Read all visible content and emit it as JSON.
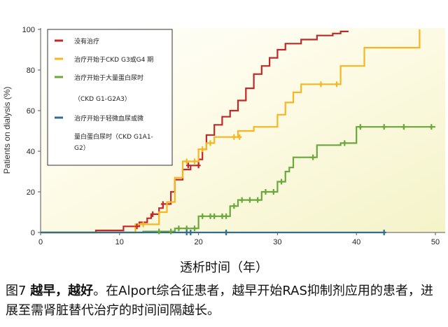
{
  "chart_data": {
    "type": "step",
    "xlabel": "透析时间（年）",
    "ylabel": "Patients on dialysis (%)",
    "xlim": [
      0,
      50
    ],
    "ylim": [
      0,
      100
    ],
    "xticks": [
      0,
      10,
      20,
      30,
      40,
      50
    ],
    "yticks": [
      0,
      20,
      40,
      60,
      80,
      100
    ],
    "grid": false,
    "legend_position": "top-left",
    "series": [
      {
        "name": "没有治疗",
        "color": "#c0282a",
        "points": [
          [
            0,
            0
          ],
          [
            7,
            0
          ],
          [
            7,
            1
          ],
          [
            10.5,
            1
          ],
          [
            10.5,
            3
          ],
          [
            12.5,
            3
          ],
          [
            12.5,
            5
          ],
          [
            13.5,
            5
          ],
          [
            13.5,
            7
          ],
          [
            14,
            7
          ],
          [
            14,
            9
          ],
          [
            15,
            9
          ],
          [
            15,
            12
          ],
          [
            15.5,
            12
          ],
          [
            15.5,
            14
          ],
          [
            16.5,
            14
          ],
          [
            16.5,
            20
          ],
          [
            17,
            20
          ],
          [
            17,
            26
          ],
          [
            18,
            26
          ],
          [
            18,
            31
          ],
          [
            19,
            31
          ],
          [
            19,
            33
          ],
          [
            20,
            33
          ],
          [
            20,
            36
          ],
          [
            20.5,
            36
          ],
          [
            20.5,
            41
          ],
          [
            21,
            41
          ],
          [
            21,
            48
          ],
          [
            22,
            48
          ],
          [
            22,
            53
          ],
          [
            23,
            53
          ],
          [
            23,
            57
          ],
          [
            24,
            57
          ],
          [
            24,
            60
          ],
          [
            25,
            60
          ],
          [
            25,
            65
          ],
          [
            26,
            65
          ],
          [
            26,
            71
          ],
          [
            27,
            71
          ],
          [
            27,
            78
          ],
          [
            28,
            78
          ],
          [
            28,
            82
          ],
          [
            29,
            82
          ],
          [
            29,
            86
          ],
          [
            30,
            86
          ],
          [
            30,
            90
          ],
          [
            31,
            90
          ],
          [
            31,
            93
          ],
          [
            33,
            93
          ],
          [
            33,
            95
          ],
          [
            35,
            95
          ],
          [
            35,
            97
          ],
          [
            37,
            97
          ],
          [
            37,
            98
          ],
          [
            38,
            98
          ],
          [
            38,
            99
          ],
          [
            39,
            99
          ]
        ],
        "markers": [
          [
            12.2,
            3
          ],
          [
            14.2,
            9
          ],
          [
            15.5,
            14
          ],
          [
            18.7,
            33
          ],
          [
            20,
            33
          ]
        ]
      },
      {
        "name": "治疗开始于CKD G3或G4 期",
        "color": "#f6b622",
        "points": [
          [
            0,
            0
          ],
          [
            12,
            0
          ],
          [
            12,
            4
          ],
          [
            15,
            4
          ],
          [
            15,
            10
          ],
          [
            16,
            10
          ],
          [
            16,
            15
          ],
          [
            17,
            15
          ],
          [
            17,
            27
          ],
          [
            18,
            27
          ],
          [
            18,
            35
          ],
          [
            20,
            35
          ],
          [
            20,
            41
          ],
          [
            21,
            41
          ],
          [
            21,
            44
          ],
          [
            22,
            44
          ],
          [
            22,
            47
          ],
          [
            25,
            47
          ],
          [
            25,
            50
          ],
          [
            27,
            50
          ],
          [
            27,
            52
          ],
          [
            30,
            52
          ],
          [
            30,
            58
          ],
          [
            31,
            58
          ],
          [
            31,
            64
          ],
          [
            32,
            64
          ],
          [
            32,
            69
          ],
          [
            33,
            69
          ],
          [
            33,
            73
          ],
          [
            38,
            73
          ],
          [
            38,
            82
          ],
          [
            41,
            82
          ],
          [
            41,
            91
          ],
          [
            48,
            91
          ],
          [
            48,
            100
          ]
        ],
        "markers": [
          [
            13,
            4
          ],
          [
            18.5,
            35
          ],
          [
            19.5,
            35
          ],
          [
            20.5,
            41
          ],
          [
            21.5,
            44
          ],
          [
            24.5,
            47
          ],
          [
            25.2,
            47
          ],
          [
            35.5,
            73
          ],
          [
            37.5,
            73
          ]
        ]
      },
      {
        "name": "治疗开始于大量蛋白尿时（CKD G1-G2A3）",
        "color": "#6aa83b",
        "points": [
          [
            0,
            0
          ],
          [
            13,
            0
          ],
          [
            13,
            0.5
          ],
          [
            17,
            0.5
          ],
          [
            17,
            2
          ],
          [
            20,
            2
          ],
          [
            20,
            8
          ],
          [
            24,
            8
          ],
          [
            24,
            13
          ],
          [
            25,
            13
          ],
          [
            25,
            16
          ],
          [
            28,
            16
          ],
          [
            28,
            20
          ],
          [
            30,
            20
          ],
          [
            30,
            25
          ],
          [
            31,
            25
          ],
          [
            31,
            30
          ],
          [
            31.5,
            30
          ],
          [
            31.5,
            32
          ],
          [
            32,
            32
          ],
          [
            32,
            37
          ],
          [
            35,
            37
          ],
          [
            35,
            43
          ],
          [
            38,
            43
          ],
          [
            38,
            44
          ],
          [
            40,
            44
          ],
          [
            40,
            52
          ],
          [
            50,
            52
          ]
        ],
        "markers": [
          [
            15,
            0.5
          ],
          [
            16.5,
            0.5
          ],
          [
            17.5,
            2
          ],
          [
            18.5,
            2
          ],
          [
            19.5,
            2
          ],
          [
            20.5,
            8
          ],
          [
            21.5,
            8
          ],
          [
            22,
            8
          ],
          [
            23,
            8
          ],
          [
            23.5,
            8
          ],
          [
            24.5,
            13
          ],
          [
            25.5,
            16
          ],
          [
            26.5,
            16
          ],
          [
            27.5,
            16
          ],
          [
            28.5,
            20
          ],
          [
            29.5,
            20
          ],
          [
            30.5,
            25
          ],
          [
            34.5,
            37
          ],
          [
            38.5,
            44
          ],
          [
            40.5,
            52
          ],
          [
            43.5,
            52
          ],
          [
            46,
            52
          ],
          [
            49.5,
            52
          ]
        ]
      },
      {
        "name": "治疗开始于轻微血尿或微量白蛋白尿时（CKD G1A1-G2）",
        "color": "#2f6e91",
        "points": [
          [
            0,
            0
          ],
          [
            43.5,
            0
          ]
        ],
        "markers": [
          [
            18.5,
            0
          ],
          [
            19,
            0
          ],
          [
            23.5,
            0
          ],
          [
            43.5,
            0
          ]
        ]
      }
    ]
  },
  "legend": {
    "line1": "没有治疗",
    "line2": "治疗开始于CKD G3或G4 期",
    "line3a": "治疗开始于大量蛋白尿时",
    "line3b": "（CKD G1-G2A3）",
    "line4a": "治疗开始于轻微血尿或微",
    "line4b": "量白蛋白尿时（CKD G1A1-",
    "line4c": "G2）"
  },
  "caption": {
    "lead": "图7 ",
    "bold": "越早，越好",
    "rest": "。在Alport综合征患者，越早开始RAS抑制剂应用的患者，进展至需肾脏替代治疗的时间间隔越长。"
  }
}
